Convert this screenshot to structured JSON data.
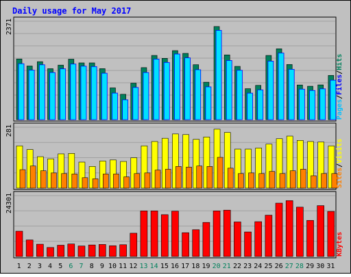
{
  "chart_data": {
    "type": "bar",
    "title": "Daily usage for May 2017",
    "categories": [
      "1",
      "2",
      "3",
      "4",
      "5",
      "6",
      "7",
      "8",
      "9",
      "10",
      "11",
      "12",
      "13",
      "14",
      "15",
      "16",
      "17",
      "18",
      "19",
      "20",
      "21",
      "22",
      "23",
      "24",
      "25",
      "26",
      "27",
      "28",
      "29",
      "30",
      "31"
    ],
    "weekend_days": [
      "6",
      "7",
      "13",
      "14",
      "20",
      "21",
      "27",
      "28"
    ],
    "panels": [
      {
        "id": "top",
        "ymax_label": "2371",
        "ylim": [
          0,
          2371
        ],
        "legend": [
          "Pages",
          "Files",
          "Hits"
        ],
        "series": [
          {
            "name": "Hits",
            "values": [
              1462,
              1293,
              1397,
              1228,
              1314,
              1457,
              1367,
              1367,
              1229,
              766,
              612,
              880,
              1254,
              1547,
              1477,
              1663,
              1597,
              1324,
              903,
              2243,
              1560,
              1284,
              747,
              827,
              1547,
              1707,
              1329,
              836,
              806,
              838,
              1066
            ]
          },
          {
            "name": "Files",
            "values": [
              1397,
              1242,
              1371,
              1185,
              1275,
              1389,
              1338,
              1328,
              1168,
              690,
              528,
              825,
              1185,
              1508,
              1427,
              1630,
              1538,
              1252,
              840,
              2200,
              1474,
              1239,
              689,
              767,
              1458,
              1654,
              1262,
              785,
              753,
              793,
              1001
            ]
          }
        ]
      },
      {
        "id": "middle",
        "ymax_label": "281",
        "ylim": [
          0,
          281
        ],
        "legend": [
          "Sites",
          "Visits"
        ],
        "series": [
          {
            "name": "Visits",
            "values": [
              195,
              178,
              145,
              135,
              158,
              160,
              120,
              100,
              125,
              130,
              123,
              140,
              195,
              215,
              230,
              250,
              247,
              225,
              236,
              272,
              257,
              180,
              180,
              185,
              203,
              228,
              240,
              220,
              215,
              213,
              195
            ]
          },
          {
            "name": "Sites",
            "values": [
              85,
              102,
              80,
              70,
              67,
              65,
              48,
              43,
              65,
              65,
              52,
              67,
              70,
              83,
              87,
              100,
              97,
              102,
              100,
              142,
              92,
              67,
              70,
              67,
              77,
              67,
              80,
              87,
              57,
              67,
              67
            ]
          }
        ]
      },
      {
        "id": "bottom",
        "ymax_label": "24301",
        "ylim": [
          0,
          24301
        ],
        "legend": [
          "KBytes"
        ],
        "series": [
          {
            "name": "KBytes",
            "values": [
              10100,
              6600,
              4900,
              3600,
              4500,
              5000,
              4200,
              4600,
              4800,
              4300,
              4700,
              9300,
              18200,
              18200,
              16700,
              18100,
              9500,
              10700,
              13600,
              18200,
              18500,
              13800,
              9800,
              13900,
              16500,
              21300,
              22300,
              19700,
              14400,
              20300,
              18000
            ]
          }
        ]
      }
    ],
    "colors": {
      "frame_bg": "#c0c0c0",
      "panel_bg": "#c0c0c0",
      "title": "#0000ff",
      "label": "#000000",
      "hits_dark": "#00805c",
      "hits": "#00805c",
      "files": "#0000ff",
      "files_fill": "#00e1ff",
      "visits": "#ffff00",
      "sites": "#ff8000",
      "kbytes": "#ff0000",
      "legend_pages": "#00c0ff",
      "legend_files": "#0000ff",
      "legend_hits": "#00805c",
      "legend_sites": "#ff8000",
      "legend_visits": "#ffff00",
      "legend_kbytes": "#ff0000",
      "weekday_label": "#000000",
      "weekend_label": "#00805c"
    }
  }
}
